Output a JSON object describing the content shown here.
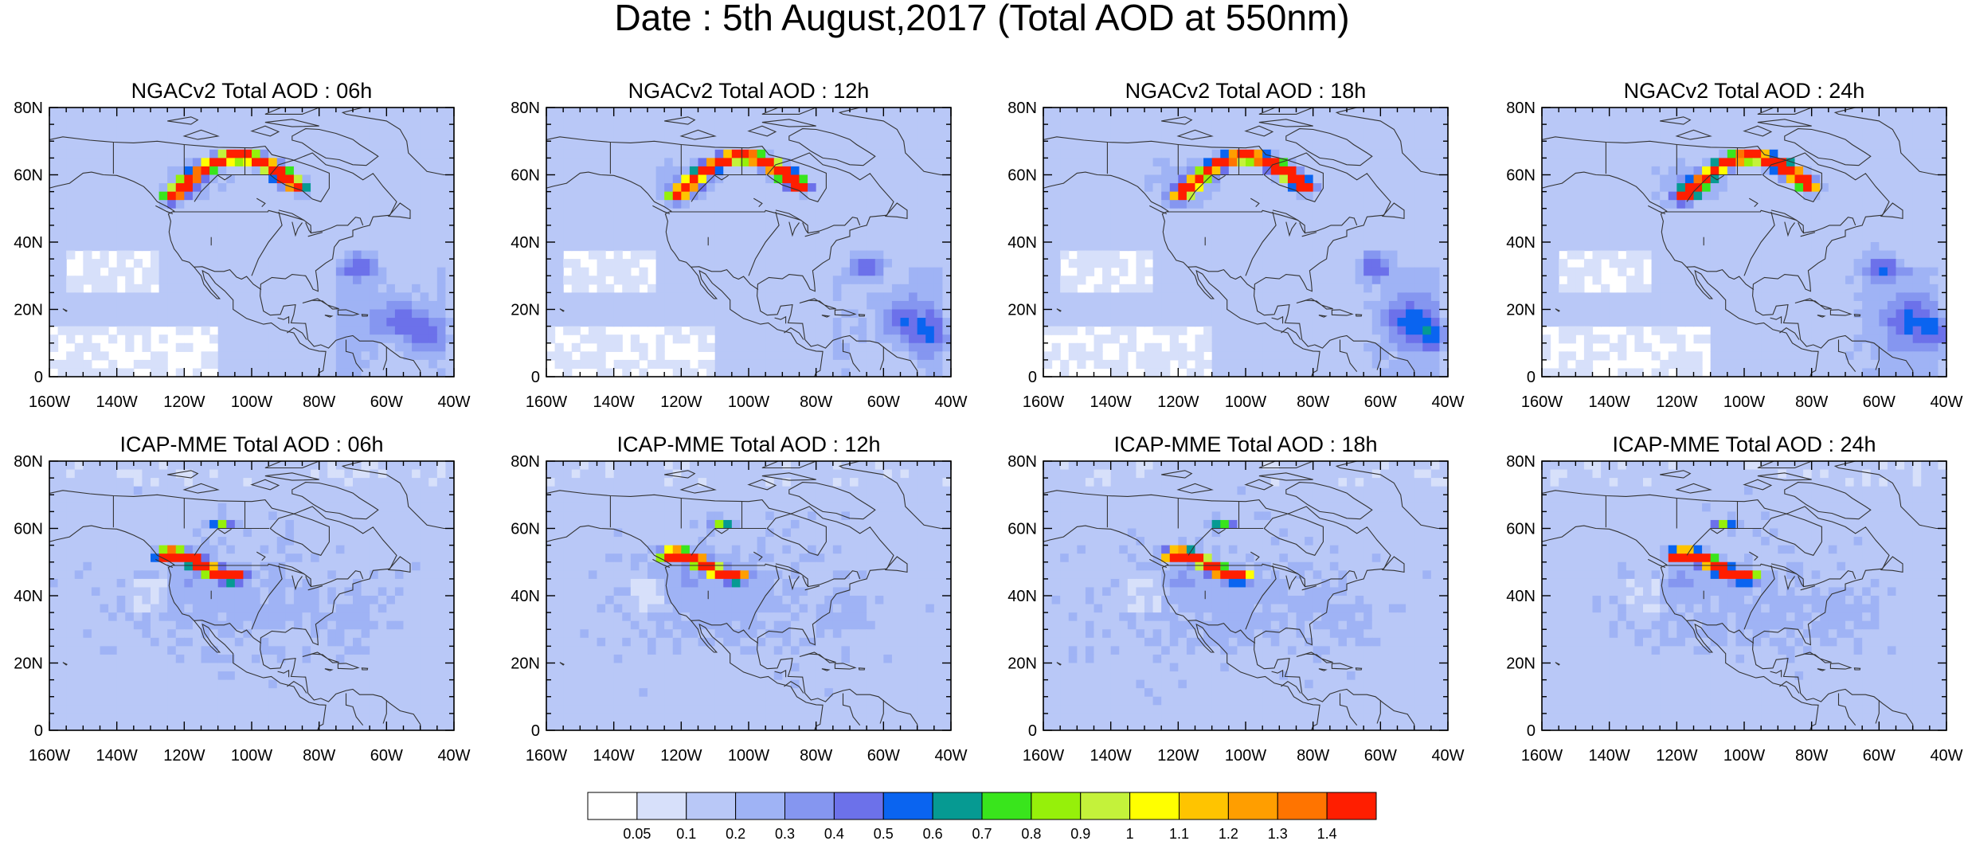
{
  "figure_title": "Date : 5th August,2017 (Total AOD at 550nm)",
  "x_tick_labels": [
    "160W",
    "140W",
    "120W",
    "100W",
    "80W",
    "60W",
    "40W"
  ],
  "y_tick_labels": [
    "0",
    "20N",
    "40N",
    "60N",
    "80N"
  ],
  "map_extent": {
    "lon_min": -160,
    "lon_max": -40,
    "lat_min": 0,
    "lat_max": 80
  },
  "panels": [
    {
      "id": "ngac-06",
      "title": "NGACv2 Total AOD : 06h",
      "model": "NGACv2",
      "forecast_hour": "06h"
    },
    {
      "id": "ngac-12",
      "title": "NGACv2 Total AOD : 12h",
      "model": "NGACv2",
      "forecast_hour": "12h"
    },
    {
      "id": "ngac-18",
      "title": "NGACv2 Total AOD : 18h",
      "model": "NGACv2",
      "forecast_hour": "18h"
    },
    {
      "id": "ngac-24",
      "title": "NGACv2 Total AOD : 24h",
      "model": "NGACv2",
      "forecast_hour": "24h"
    },
    {
      "id": "icap-06",
      "title": "ICAP-MME Total AOD : 06h",
      "model": "ICAP-MME",
      "forecast_hour": "06h"
    },
    {
      "id": "icap-12",
      "title": "ICAP-MME Total AOD : 12h",
      "model": "ICAP-MME",
      "forecast_hour": "12h"
    },
    {
      "id": "icap-18",
      "title": "ICAP-MME Total AOD : 18h",
      "model": "ICAP-MME",
      "forecast_hour": "18h"
    },
    {
      "id": "icap-24",
      "title": "ICAP-MME Total AOD : 24h",
      "model": "ICAP-MME",
      "forecast_hour": "24h"
    }
  ],
  "colorbar": {
    "colors": [
      "#ffffff",
      "#d7e0fa",
      "#b9c8f7",
      "#9fb3f5",
      "#8596f0",
      "#6c71ea",
      "#0a64f0",
      "#069a92",
      "#39e51c",
      "#96f00a",
      "#c4f23a",
      "#ffff00",
      "#ffc400",
      "#ff9e00",
      "#ff7400",
      "#ff1e00"
    ],
    "tick_labels": [
      "0.05",
      "0.1",
      "0.2",
      "0.3",
      "0.4",
      "0.5",
      "0.6",
      "0.7",
      "0.8",
      "0.9",
      "1",
      "1.1",
      "1.2",
      "1.3",
      "1.4"
    ]
  }
}
